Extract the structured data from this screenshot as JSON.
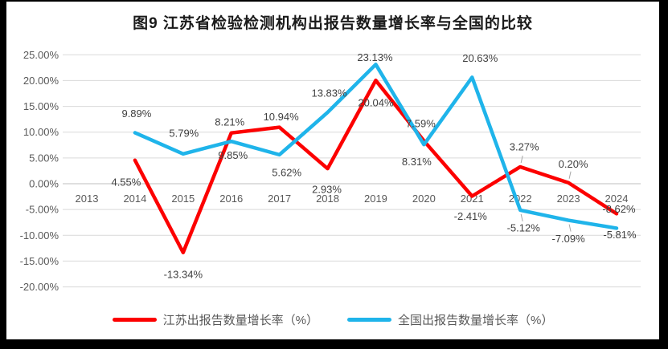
{
  "chart_data": {
    "type": "line",
    "title": "图9  江苏省检验检测机构出报告数量增长率与全国的比较",
    "xlabel": "",
    "ylabel": "",
    "ylim": [
      -20,
      25
    ],
    "grid": true,
    "legend_position": "bottom",
    "categories": [
      "2013",
      "2014",
      "2015",
      "2016",
      "2017",
      "2018",
      "2019",
      "2020",
      "2021",
      "2022",
      "2023",
      "2024"
    ],
    "y_axis": {
      "ticks": [
        {
          "value": 25,
          "label": "25.00%"
        },
        {
          "value": 20,
          "label": "20.00%"
        },
        {
          "value": 15,
          "label": "15.00%"
        },
        {
          "value": 10,
          "label": "10.00%"
        },
        {
          "value": 5,
          "label": "5.00%"
        },
        {
          "value": 0,
          "label": "0.00%"
        },
        {
          "value": -5,
          "label": "-5.00%"
        },
        {
          "value": -10,
          "label": "-10.00%"
        },
        {
          "value": -15,
          "label": "-15.00%"
        },
        {
          "value": -20,
          "label": "-20.00%"
        }
      ]
    },
    "colors": {
      "jiangsu": "#FC0000",
      "national": "#1FB4EA",
      "gridline": "#D9D9D9",
      "axis_line": "#BFBFBF",
      "axis_text": "#595959",
      "label_text": "#404040",
      "leader": "#A6A6A6",
      "background": "#FFFFFF",
      "frame": "#000000"
    },
    "series": [
      {
        "id": "jiangsu",
        "name": "江苏出报告数量增长率（%）",
        "color_key": "jiangsu",
        "points": [
          {
            "year": "2014",
            "value": 4.55,
            "label": "4.55%",
            "dx": -11,
            "dy": 27
          },
          {
            "year": "2015",
            "value": -13.34,
            "label": "-13.34%",
            "dx": 0,
            "dy": 27
          },
          {
            "year": "2016",
            "value": 9.85,
            "label": "9.85%",
            "dx": 2,
            "dy": 28
          },
          {
            "year": "2017",
            "value": 10.94,
            "label": "10.94%",
            "dx": 2,
            "dy": -13
          },
          {
            "year": "2018",
            "value": 2.93,
            "label": "2.93%",
            "dx": -1,
            "dy": 26
          },
          {
            "year": "2019",
            "value": 20.04,
            "label": "20.04%",
            "dx": 0,
            "dy": 28
          },
          {
            "year": "2020",
            "value": 8.31,
            "label": "8.31%",
            "dx": -9,
            "dy": 26
          },
          {
            "year": "2021",
            "value": -2.41,
            "label": "-2.41%",
            "dx": -2,
            "dy": 25
          },
          {
            "year": "2022",
            "value": 3.27,
            "label": "3.27%",
            "dx": 5,
            "dy": -25,
            "leader": true
          },
          {
            "year": "2023",
            "value": 0.2,
            "label": "0.20%",
            "dx": 6,
            "dy": -23,
            "leader": true
          },
          {
            "year": "2024",
            "value": -5.81,
            "label": "-5.81%",
            "dx": 4,
            "dy": 26
          }
        ]
      },
      {
        "id": "national",
        "name": "全国出报告数量增长率（%）",
        "color_key": "national",
        "points": [
          {
            "year": "2014",
            "value": 9.89,
            "label": "9.89%",
            "dx": 2,
            "dy": -24
          },
          {
            "year": "2015",
            "value": 5.79,
            "label": "5.79%",
            "dx": 1,
            "dy": -26
          },
          {
            "year": "2016",
            "value": 8.21,
            "label": "8.21%",
            "dx": -2,
            "dy": -24
          },
          {
            "year": "2017",
            "value": 5.62,
            "label": "5.62%",
            "dx": 9,
            "dy": 22
          },
          {
            "year": "2018",
            "value": 13.83,
            "label": "13.83%",
            "dx": 2,
            "dy": -24
          },
          {
            "year": "2019",
            "value": 23.13,
            "label": "23.13%",
            "dx": -1,
            "dy": -9
          },
          {
            "year": "2020",
            "value": 7.59,
            "label": "7.59%",
            "dx": -4,
            "dy": -26
          },
          {
            "year": "2021",
            "value": 20.63,
            "label": "20.63%",
            "dx": 10,
            "dy": -24
          },
          {
            "year": "2022",
            "value": -5.12,
            "label": "-5.12%",
            "dx": 4,
            "dy": 22,
            "leader": true
          },
          {
            "year": "2023",
            "value": -7.09,
            "label": "-7.09%",
            "dx": 0,
            "dy": 23,
            "leader": true
          },
          {
            "year": "2024",
            "value": -8.62,
            "label": "-8.62%",
            "dx": 3,
            "dy": -24
          }
        ]
      }
    ]
  }
}
